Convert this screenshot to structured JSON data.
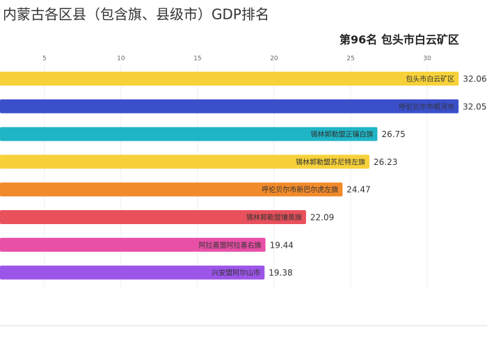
{
  "chart_data": {
    "type": "bar",
    "title": "内蒙古各区县（包含旗、县级市）GDP排名",
    "subtitle": "第96名 包头市白云矿区",
    "orientation": "horizontal",
    "categories": [
      "包头市白云矿区",
      "呼伦贝尔市根河市",
      "锡林郭勒盟正镶白旗",
      "锡林郭勒盟苏尼特左旗",
      "呼伦贝尔市新巴尔虎左旗",
      "锡林郭勒盟镶黄旗",
      "阿拉善盟阿拉善右旗",
      "兴安盟阿尔山市"
    ],
    "values": [
      32.06,
      32.05,
      26.75,
      26.23,
      24.47,
      22.09,
      19.44,
      19.38
    ],
    "colors": [
      "#f6d13a",
      "#3a4fc9",
      "#1fb5c6",
      "#f6d13a",
      "#f08a2a",
      "#e8505b",
      "#e84fa6",
      "#9b55e8"
    ],
    "xlim": [
      2.1,
      33
    ],
    "xticks": [
      5,
      10,
      15,
      20,
      25,
      30
    ],
    "grid": true
  }
}
